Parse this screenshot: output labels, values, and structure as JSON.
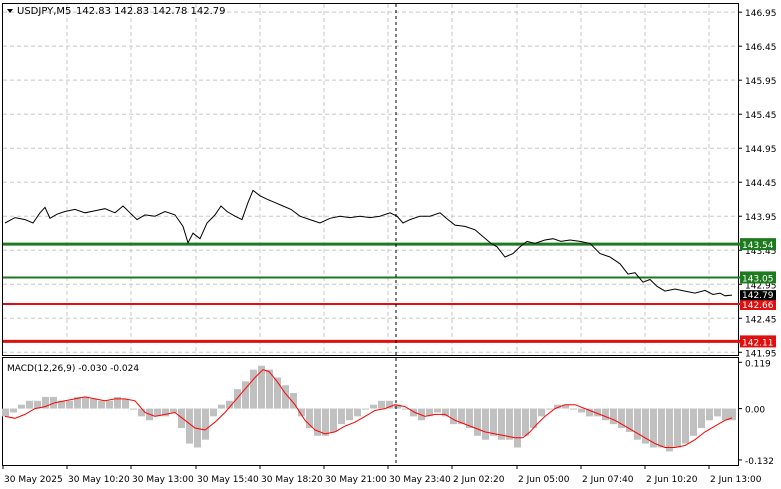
{
  "header": {
    "symbol": "USDJPY,M5",
    "ohlc": "142.83 142.83 142.78 142.79"
  },
  "macd_label": "MACD(12,26,9) -0.030 -0.024",
  "colors": {
    "price_line": "#000000",
    "green_level": "#1e7a1e",
    "red_level": "#e01010",
    "macd_hist": "#c0c0c0",
    "macd_signal": "#ff0000",
    "grid": "#c8c8c8",
    "current_price_bg": "#000000"
  },
  "chart_data": {
    "type": "line",
    "price_axis": {
      "ticks": [
        "146.95",
        "146.45",
        "145.95",
        "145.45",
        "144.95",
        "144.45",
        "143.95",
        "143.45",
        "142.95",
        "142.45",
        "141.95"
      ],
      "tick_values": [
        146.95,
        146.45,
        145.95,
        145.45,
        144.95,
        144.45,
        143.95,
        143.45,
        142.95,
        142.45,
        141.95
      ]
    },
    "time_axis": {
      "labels": [
        "30 May 2025",
        "30 May 10:20",
        "30 May 13:00",
        "30 May 15:40",
        "30 May 18:20",
        "30 May 21:00",
        "30 May 23:40",
        "2 Jun 02:20",
        "2 Jun 05:00",
        "2 Jun 07:40",
        "2 Jun 10:20",
        "2 Jun 13:00"
      ]
    },
    "levels": [
      {
        "label": "143.54",
        "value": 143.54,
        "color": "green"
      },
      {
        "label": "143.05",
        "value": 143.05,
        "color": "green"
      },
      {
        "label": "142.66",
        "value": 142.66,
        "color": "red"
      },
      {
        "label": "142.11",
        "value": 142.11,
        "color": "red"
      }
    ],
    "current_price": {
      "label": "142.79",
      "value": 142.79
    },
    "price_series": [
      [
        0,
        143.85
      ],
      [
        10,
        143.93
      ],
      [
        20,
        143.9
      ],
      [
        28,
        143.85
      ],
      [
        35,
        144.0
      ],
      [
        40,
        144.08
      ],
      [
        45,
        143.92
      ],
      [
        52,
        143.98
      ],
      [
        60,
        144.02
      ],
      [
        70,
        144.05
      ],
      [
        80,
        144.0
      ],
      [
        90,
        144.03
      ],
      [
        100,
        144.06
      ],
      [
        110,
        144.0
      ],
      [
        118,
        144.1
      ],
      [
        125,
        144.0
      ],
      [
        132,
        143.9
      ],
      [
        140,
        143.97
      ],
      [
        150,
        143.95
      ],
      [
        160,
        144.02
      ],
      [
        170,
        143.97
      ],
      [
        178,
        143.8
      ],
      [
        183,
        143.56
      ],
      [
        188,
        143.7
      ],
      [
        195,
        143.62
      ],
      [
        202,
        143.85
      ],
      [
        210,
        143.97
      ],
      [
        216,
        144.1
      ],
      [
        222,
        144.02
      ],
      [
        230,
        143.95
      ],
      [
        237,
        143.9
      ],
      [
        243,
        144.15
      ],
      [
        248,
        144.33
      ],
      [
        255,
        144.25
      ],
      [
        262,
        144.2
      ],
      [
        270,
        144.15
      ],
      [
        278,
        144.1
      ],
      [
        286,
        144.05
      ],
      [
        295,
        143.95
      ],
      [
        305,
        143.9
      ],
      [
        315,
        143.85
      ],
      [
        325,
        143.92
      ],
      [
        335,
        143.95
      ],
      [
        345,
        143.93
      ],
      [
        355,
        143.95
      ],
      [
        365,
        143.93
      ],
      [
        375,
        143.95
      ],
      [
        385,
        144.0
      ],
      [
        392,
        143.95
      ],
      [
        398,
        143.85
      ],
      [
        405,
        143.9
      ],
      [
        415,
        143.95
      ],
      [
        425,
        143.95
      ],
      [
        435,
        144.0
      ],
      [
        443,
        143.9
      ],
      [
        450,
        143.82
      ],
      [
        460,
        143.8
      ],
      [
        470,
        143.75
      ],
      [
        478,
        143.65
      ],
      [
        486,
        143.55
      ],
      [
        492,
        143.5
      ],
      [
        500,
        143.35
      ],
      [
        508,
        143.4
      ],
      [
        515,
        143.5
      ],
      [
        522,
        143.58
      ],
      [
        530,
        143.55
      ],
      [
        540,
        143.6
      ],
      [
        548,
        143.62
      ],
      [
        556,
        143.58
      ],
      [
        565,
        143.6
      ],
      [
        575,
        143.58
      ],
      [
        585,
        143.55
      ],
      [
        595,
        143.4
      ],
      [
        605,
        143.35
      ],
      [
        615,
        143.25
      ],
      [
        623,
        143.1
      ],
      [
        630,
        143.12
      ],
      [
        638,
        142.98
      ],
      [
        645,
        143.02
      ],
      [
        652,
        142.92
      ],
      [
        660,
        142.85
      ],
      [
        670,
        142.88
      ],
      [
        680,
        142.85
      ],
      [
        690,
        142.82
      ],
      [
        700,
        142.86
      ],
      [
        708,
        142.8
      ],
      [
        715,
        142.82
      ],
      [
        720,
        142.78
      ],
      [
        727,
        142.79
      ]
    ],
    "macd_axis": {
      "ticks": [
        "0.119",
        "0.00",
        "-0.132"
      ],
      "tick_values": [
        0.119,
        0.0,
        -0.132
      ]
    },
    "macd_hist": [
      [
        0,
        -0.02
      ],
      [
        8,
        -0.01
      ],
      [
        16,
        0.01
      ],
      [
        24,
        0.02
      ],
      [
        32,
        0.02
      ],
      [
        40,
        0.03
      ],
      [
        48,
        0.03
      ],
      [
        56,
        0.02
      ],
      [
        64,
        0.02
      ],
      [
        72,
        0.03
      ],
      [
        80,
        0.03
      ],
      [
        88,
        0.025
      ],
      [
        96,
        0.02
      ],
      [
        104,
        0.02
      ],
      [
        112,
        0.03
      ],
      [
        120,
        0.025
      ],
      [
        128,
        0.0
      ],
      [
        136,
        -0.02
      ],
      [
        144,
        -0.03
      ],
      [
        152,
        -0.02
      ],
      [
        160,
        -0.02
      ],
      [
        168,
        -0.01
      ],
      [
        176,
        -0.05
      ],
      [
        184,
        -0.09
      ],
      [
        192,
        -0.1
      ],
      [
        200,
        -0.08
      ],
      [
        208,
        -0.02
      ],
      [
        216,
        0.01
      ],
      [
        224,
        0.02
      ],
      [
        232,
        0.05
      ],
      [
        240,
        0.07
      ],
      [
        248,
        0.1
      ],
      [
        256,
        0.11
      ],
      [
        264,
        0.1
      ],
      [
        272,
        0.08
      ],
      [
        280,
        0.06
      ],
      [
        288,
        0.04
      ],
      [
        296,
        -0.02
      ],
      [
        304,
        -0.05
      ],
      [
        312,
        -0.07
      ],
      [
        320,
        -0.07
      ],
      [
        328,
        -0.06
      ],
      [
        336,
        -0.04
      ],
      [
        344,
        -0.03
      ],
      [
        352,
        -0.02
      ],
      [
        360,
        0.0
      ],
      [
        368,
        0.01
      ],
      [
        376,
        0.02
      ],
      [
        384,
        0.02
      ],
      [
        392,
        0.01
      ],
      [
        400,
        0.0
      ],
      [
        408,
        -0.02
      ],
      [
        416,
        -0.03
      ],
      [
        424,
        -0.02
      ],
      [
        432,
        -0.01
      ],
      [
        440,
        -0.02
      ],
      [
        448,
        -0.04
      ],
      [
        456,
        -0.04
      ],
      [
        464,
        -0.05
      ],
      [
        472,
        -0.07
      ],
      [
        480,
        -0.08
      ],
      [
        488,
        -0.07
      ],
      [
        496,
        -0.08
      ],
      [
        504,
        -0.08
      ],
      [
        512,
        -0.1
      ],
      [
        520,
        -0.07
      ],
      [
        528,
        -0.05
      ],
      [
        536,
        -0.02
      ],
      [
        544,
        0.0
      ],
      [
        552,
        0.01
      ],
      [
        560,
        0.01
      ],
      [
        568,
        0.0
      ],
      [
        576,
        -0.01
      ],
      [
        584,
        -0.02
      ],
      [
        592,
        -0.02
      ],
      [
        600,
        -0.03
      ],
      [
        608,
        -0.04
      ],
      [
        616,
        -0.05
      ],
      [
        624,
        -0.06
      ],
      [
        632,
        -0.08
      ],
      [
        640,
        -0.09
      ],
      [
        648,
        -0.1
      ],
      [
        656,
        -0.1
      ],
      [
        664,
        -0.11
      ],
      [
        672,
        -0.1
      ],
      [
        680,
        -0.09
      ],
      [
        688,
        -0.07
      ],
      [
        696,
        -0.05
      ],
      [
        704,
        -0.03
      ],
      [
        712,
        -0.02
      ],
      [
        720,
        -0.03
      ],
      [
        727,
        -0.03
      ]
    ],
    "macd_signal": [
      [
        0,
        -0.02
      ],
      [
        10,
        -0.025
      ],
      [
        20,
        -0.015
      ],
      [
        30,
        0.0
      ],
      [
        40,
        0.005
      ],
      [
        50,
        0.015
      ],
      [
        60,
        0.02
      ],
      [
        70,
        0.025
      ],
      [
        80,
        0.03
      ],
      [
        90,
        0.025
      ],
      [
        100,
        0.02
      ],
      [
        110,
        0.025
      ],
      [
        120,
        0.025
      ],
      [
        130,
        0.02
      ],
      [
        140,
        -0.01
      ],
      [
        150,
        -0.02
      ],
      [
        160,
        -0.015
      ],
      [
        170,
        -0.01
      ],
      [
        180,
        -0.03
      ],
      [
        190,
        -0.05
      ],
      [
        200,
        -0.055
      ],
      [
        210,
        -0.035
      ],
      [
        220,
        -0.01
      ],
      [
        230,
        0.02
      ],
      [
        240,
        0.05
      ],
      [
        250,
        0.08
      ],
      [
        258,
        0.1
      ],
      [
        264,
        0.095
      ],
      [
        272,
        0.07
      ],
      [
        280,
        0.04
      ],
      [
        290,
        0.01
      ],
      [
        300,
        -0.03
      ],
      [
        310,
        -0.055
      ],
      [
        320,
        -0.065
      ],
      [
        330,
        -0.06
      ],
      [
        340,
        -0.045
      ],
      [
        350,
        -0.035
      ],
      [
        360,
        -0.02
      ],
      [
        370,
        -0.005
      ],
      [
        380,
        0.0
      ],
      [
        390,
        0.01
      ],
      [
        400,
        0.005
      ],
      [
        410,
        -0.01
      ],
      [
        420,
        -0.02
      ],
      [
        430,
        -0.015
      ],
      [
        440,
        -0.015
      ],
      [
        450,
        -0.03
      ],
      [
        460,
        -0.04
      ],
      [
        470,
        -0.05
      ],
      [
        480,
        -0.06
      ],
      [
        490,
        -0.065
      ],
      [
        500,
        -0.07
      ],
      [
        510,
        -0.075
      ],
      [
        518,
        -0.075
      ],
      [
        525,
        -0.06
      ],
      [
        532,
        -0.04
      ],
      [
        540,
        -0.02
      ],
      [
        550,
        0.0
      ],
      [
        560,
        0.01
      ],
      [
        570,
        0.01
      ],
      [
        580,
        0.0
      ],
      [
        590,
        -0.01
      ],
      [
        600,
        -0.02
      ],
      [
        610,
        -0.03
      ],
      [
        620,
        -0.045
      ],
      [
        630,
        -0.06
      ],
      [
        640,
        -0.075
      ],
      [
        650,
        -0.09
      ],
      [
        660,
        -0.1
      ],
      [
        670,
        -0.1
      ],
      [
        680,
        -0.095
      ],
      [
        690,
        -0.08
      ],
      [
        700,
        -0.06
      ],
      [
        710,
        -0.045
      ],
      [
        720,
        -0.03
      ],
      [
        727,
        -0.024
      ]
    ]
  }
}
